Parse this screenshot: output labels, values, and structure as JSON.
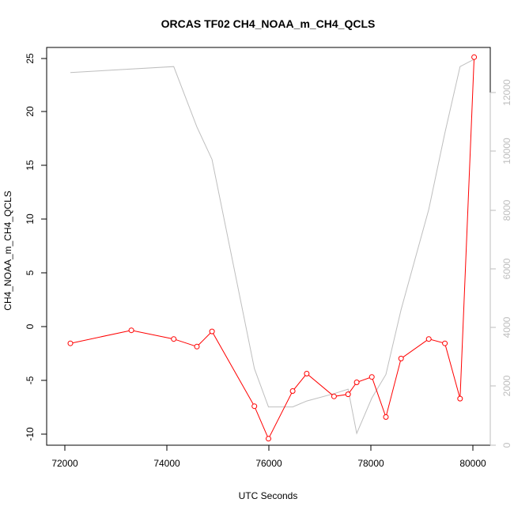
{
  "chart_data": {
    "type": "line",
    "title": "ORCAS TF02 CH4_NOAA_m_CH4_QCLS",
    "xlabel": "UTC Seconds",
    "ylabel": "CH4_NOAA_m_CH4_QCLS",
    "xlim": [
      71500,
      80300
    ],
    "ylim": [
      -11.2,
      25.5
    ],
    "y2lim": [
      -200,
      13300
    ],
    "x_ticks": [
      "72000",
      "74000",
      "76000",
      "78000",
      "80000"
    ],
    "y_ticks": [
      "-10",
      "-5",
      "0",
      "5",
      "10",
      "15",
      "20",
      "25"
    ],
    "y2_ticks": [
      "0",
      "2000",
      "4000",
      "6000",
      "8000",
      "10000",
      "12000"
    ],
    "series": [
      {
        "color": "#ff0000",
        "axis": "left",
        "markers": true,
        "points": [
          [
            71970,
            -1.8
          ],
          [
            73180,
            -0.6
          ],
          [
            74020,
            -1.4
          ],
          [
            74480,
            -2.1
          ],
          [
            74780,
            -0.7
          ],
          [
            75620,
            -7.6
          ],
          [
            75900,
            -10.6
          ],
          [
            76380,
            -6.2
          ],
          [
            76660,
            -4.6
          ],
          [
            77200,
            -6.7
          ],
          [
            77480,
            -6.5
          ],
          [
            77650,
            -5.4
          ],
          [
            77950,
            -4.9
          ],
          [
            78230,
            -8.6
          ],
          [
            78530,
            -3.2
          ],
          [
            79080,
            -1.4
          ],
          [
            79400,
            -1.8
          ],
          [
            79700,
            -6.9
          ],
          [
            79980,
            24.6
          ]
        ]
      },
      {
        "color": "#bebebe",
        "axis": "right",
        "markers": false,
        "points": [
          [
            71970,
            12450
          ],
          [
            74020,
            12650
          ],
          [
            74480,
            10600
          ],
          [
            74780,
            9500
          ],
          [
            75620,
            2400
          ],
          [
            75900,
            1100
          ],
          [
            76380,
            1100
          ],
          [
            76660,
            1300
          ],
          [
            77200,
            1550
          ],
          [
            77480,
            1700
          ],
          [
            77650,
            200
          ],
          [
            77950,
            1400
          ],
          [
            78230,
            2200
          ],
          [
            78530,
            4400
          ],
          [
            79080,
            7800
          ],
          [
            79400,
            10400
          ],
          [
            79700,
            12650
          ],
          [
            79980,
            12900
          ]
        ]
      }
    ]
  }
}
